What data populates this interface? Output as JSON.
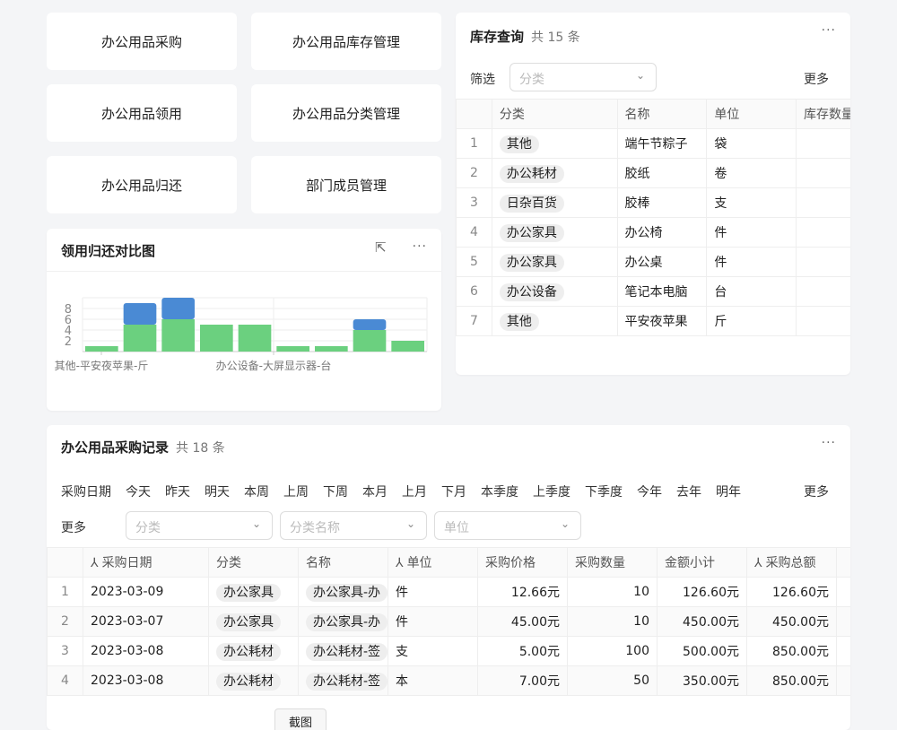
{
  "nav": [
    "办公用品采购",
    "办公用品库存管理",
    "办公用品领用",
    "办公用品分类管理",
    "办公用品归还",
    "部门成员管理"
  ],
  "inventory": {
    "title": "库存查询",
    "count": "共 15 条",
    "filter_label": "筛选",
    "filter_placeholder": "分类",
    "more": "更多",
    "columns": [
      "分类",
      "名称",
      "单位",
      "库存数量"
    ],
    "rows": [
      [
        "1",
        "其他",
        "端午节粽子",
        "袋"
      ],
      [
        "2",
        "办公耗材",
        "胶纸",
        "卷"
      ],
      [
        "3",
        "日杂百货",
        "胶棒",
        "支"
      ],
      [
        "4",
        "办公家具",
        "办公椅",
        "件"
      ],
      [
        "5",
        "办公家具",
        "办公桌",
        "件"
      ],
      [
        "6",
        "办公设备",
        "笔记本电脑",
        "台"
      ],
      [
        "7",
        "其他",
        "平安夜苹果",
        "斤"
      ]
    ]
  },
  "chart": {
    "title": "领用归还对比图"
  },
  "chart_data": {
    "type": "bar",
    "stacked": true,
    "ylim": [
      0,
      10
    ],
    "yticks": [
      2,
      4,
      6,
      8
    ],
    "tick_labels": [
      "其他-平安夜苹果-斤",
      "办公设备-大屏显示器-台"
    ],
    "series": [
      {
        "color": "#6bd07f",
        "values": [
          1,
          5,
          6,
          5,
          5,
          1,
          1,
          4,
          2
        ]
      },
      {
        "color": "#4a8ad4",
        "values": [
          0,
          4,
          4,
          0,
          0,
          0,
          0,
          2,
          0
        ]
      }
    ]
  },
  "purchase": {
    "title": "办公用品采购记录",
    "count": "共 18 条",
    "date_label": "采购日期",
    "date_filters": [
      "今天",
      "昨天",
      "明天",
      "本周",
      "上周",
      "下周",
      "本月",
      "上月",
      "下月",
      "本季度",
      "上季度",
      "下季度",
      "今年",
      "去年",
      "明年"
    ],
    "more": "更多",
    "more_label": "更多",
    "selects": [
      "分类",
      "分类名称",
      "单位"
    ],
    "columns": [
      "采购日期",
      "分类",
      "名称",
      "单位",
      "采购价格",
      "采购数量",
      "金额小计",
      "采购总额"
    ],
    "rows": [
      [
        "1",
        "2023-03-09",
        "办公家具",
        "办公家具-办",
        "件",
        "12.66元",
        "10",
        "126.60元",
        "126.60元"
      ],
      [
        "2",
        "2023-03-07",
        "办公家具",
        "办公家具-办",
        "件",
        "45.00元",
        "10",
        "450.00元",
        "450.00元"
      ],
      [
        "3",
        "2023-03-08",
        "办公耗材",
        "办公耗材-签",
        "支",
        "5.00元",
        "100",
        "500.00元",
        "850.00元"
      ],
      [
        "4",
        "2023-03-08",
        "办公耗材",
        "办公耗材-签",
        "本",
        "7.00元",
        "50",
        "350.00元",
        "850.00元"
      ]
    ],
    "bottom_button": "截图"
  }
}
